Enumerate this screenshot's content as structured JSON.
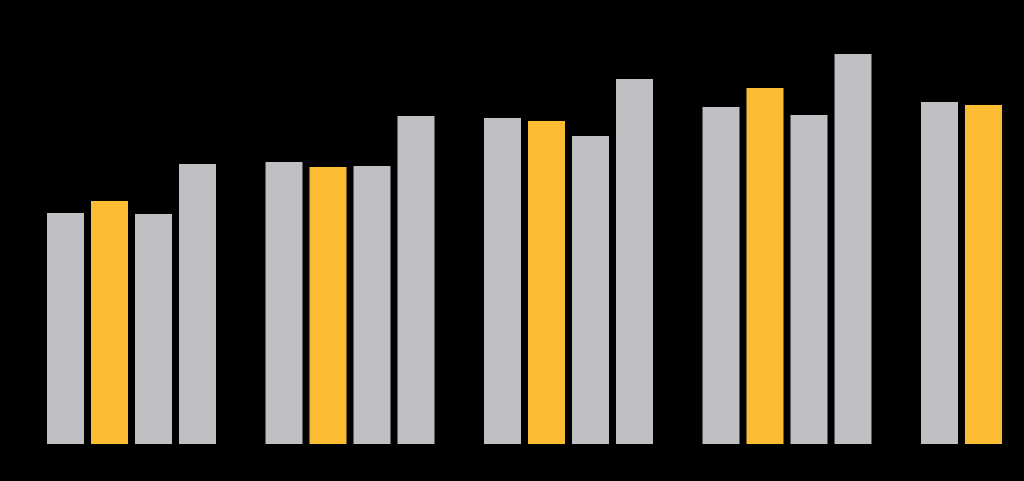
{
  "chart_data": {
    "type": "bar",
    "categories": [
      null,
      null,
      null,
      null,
      null
    ],
    "series": [
      {
        "color": "#bfc0c3",
        "values": [
          231,
          282,
          326,
          337,
          342
        ]
      },
      {
        "color": "#fbbc33",
        "values": [
          243,
          277,
          323,
          356,
          339
        ]
      },
      {
        "color": "#bfc0c3",
        "values": [
          230,
          278,
          308,
          329,
          null
        ]
      },
      {
        "color": "#bfc0c3",
        "values": [
          280,
          328,
          365,
          390,
          null
        ]
      }
    ],
    "ylim": [
      0,
      444
    ]
  }
}
